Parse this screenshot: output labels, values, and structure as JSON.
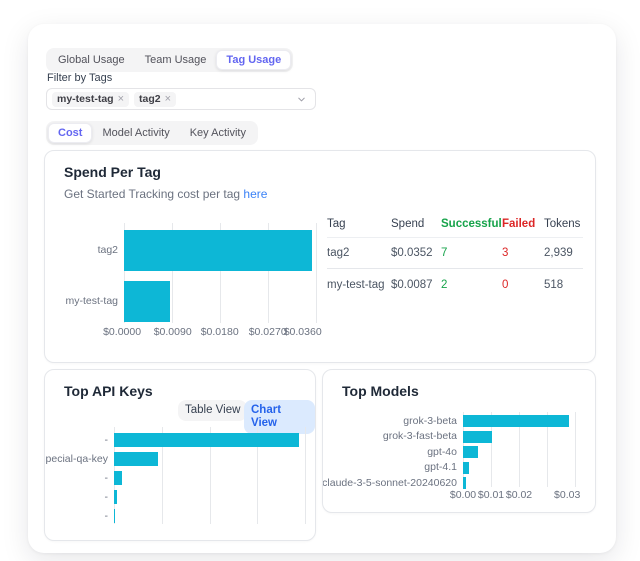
{
  "colors": {
    "bar_cyan": "#0db7d6",
    "accent_purple": "#6366f1",
    "success_green": "#16a34a",
    "failed_red": "#dc2626",
    "link_blue": "#3b82f6",
    "chart_view_blue": "#2563eb"
  },
  "usage_tabs": {
    "items": [
      "Global Usage",
      "Team Usage",
      "Tag Usage"
    ],
    "active": "Tag Usage"
  },
  "filter": {
    "label": "Filter by Tags",
    "tags": [
      "my-test-tag",
      "tag2"
    ],
    "dismiss_icon": "×"
  },
  "view_tabs": {
    "items": [
      "Cost",
      "Model Activity",
      "Key Activity"
    ],
    "active": "Cost"
  },
  "spend_card": {
    "title": "Spend Per Tag",
    "subtitle_prefix": "Get Started Tracking cost per tag ",
    "subtitle_link": "here",
    "table": {
      "headers": [
        "Tag",
        "Spend",
        "Successful",
        "Failed",
        "Tokens"
      ],
      "rows": [
        {
          "tag": "tag2",
          "spend": "$0.0352",
          "successful": "7",
          "failed": "3",
          "tokens": "2,939"
        },
        {
          "tag": "my-test-tag",
          "spend": "$0.0087",
          "successful": "2",
          "failed": "0",
          "tokens": "518"
        }
      ]
    }
  },
  "top_api_keys": {
    "title": "Top API Keys",
    "table_view_label": "Table View",
    "chart_view_label": "Chart View"
  },
  "top_models": {
    "title": "Top Models"
  },
  "chart_data": [
    {
      "id": "spend-per-tag",
      "type": "bar",
      "orientation": "horizontal",
      "categories": [
        "tag2",
        "my-test-tag"
      ],
      "values": [
        0.0352,
        0.0087
      ],
      "xlim": [
        0,
        0.036
      ],
      "xticks": [
        "$0.0000",
        "$0.0090",
        "$0.0180",
        "$0.0270",
        "$0.0360"
      ],
      "grid": "vertical"
    },
    {
      "id": "top-api-keys",
      "type": "bar",
      "orientation": "horizontal",
      "categories": [
        "-",
        "pecial-qa-key",
        "-",
        "-",
        "-"
      ],
      "values": [
        0.97,
        0.23,
        0.042,
        0.018,
        0.005
      ],
      "xlim": [
        0,
        1
      ],
      "xticks": [],
      "grid": "vertical"
    },
    {
      "id": "top-models",
      "type": "bar",
      "orientation": "horizontal",
      "categories": [
        "grok-3-beta",
        "grok-3-fast-beta",
        "gpt-4o",
        "gpt-4.1",
        "claude-3-5-sonnet-20240620"
      ],
      "values": [
        0.0296,
        0.0081,
        0.0042,
        0.0018,
        0.0007
      ],
      "xlim": [
        0,
        0.0312
      ],
      "xticks": [
        "$0.00",
        "$0.01",
        "$0.02",
        "$0.03"
      ],
      "grid": "vertical"
    }
  ]
}
